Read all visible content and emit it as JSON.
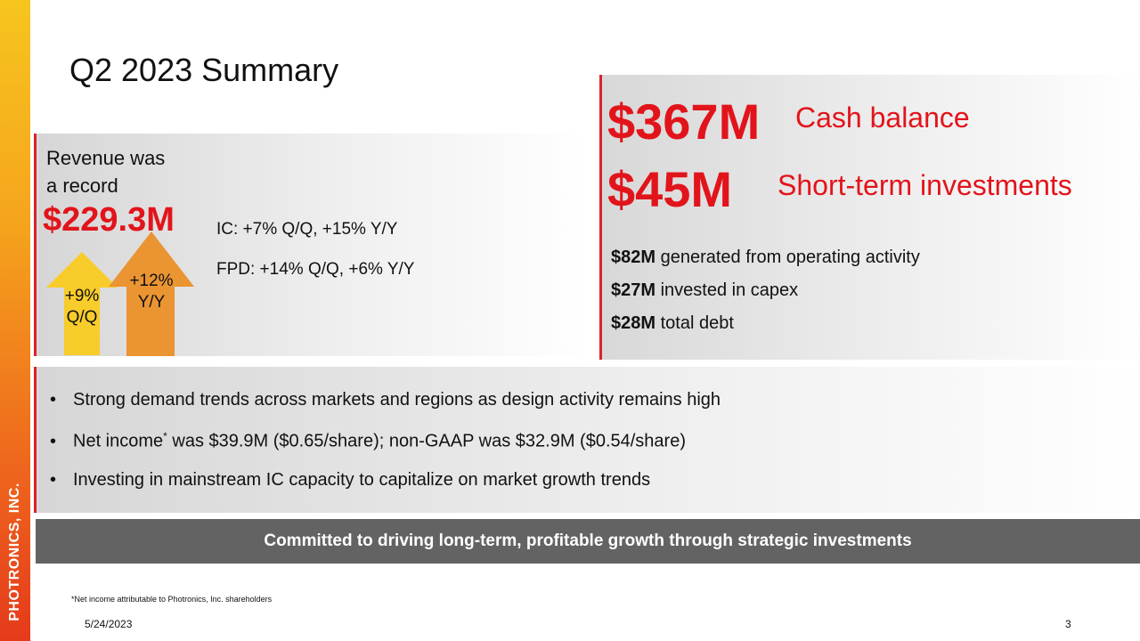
{
  "sidebar": {
    "company": "PHOTRONICS, INC."
  },
  "title": "Q2 2023 Summary",
  "revenue": {
    "heading_line1": "Revenue was",
    "heading_line2": "a record",
    "value": "$229.3M",
    "ic_line": "IC: +7% Q/Q, +15% Y/Y",
    "fpd_line": "FPD: +14% Q/Q, +6% Y/Y",
    "arrow_qq": {
      "line1": "+9%",
      "line2": "Q/Q",
      "color": "#f8cc2a"
    },
    "arrow_yy": {
      "line1": "+12%",
      "line2": "Y/Y",
      "color": "#ea9432"
    }
  },
  "cash": {
    "balance_value": "$367M",
    "balance_label": "Cash balance",
    "investments_value": "$45M",
    "investments_label": "Short-term investments",
    "lines": [
      {
        "value": "$82M",
        "text": " generated from operating activity"
      },
      {
        "value": "$27M",
        "text": " invested in capex"
      },
      {
        "value": "$28M",
        "text": " total debt"
      }
    ]
  },
  "bullets": {
    "marker": "•",
    "item1": "Strong demand trends across markets and regions as design activity remains high",
    "item2_before": "Net income",
    "item2_sup": "*",
    "item2_after": " was $39.9M ($0.65/share); non-GAAP was $32.9M ($0.54/share)",
    "item3": "Investing in mainstream IC capacity to capitalize on market growth trends"
  },
  "banner": "Committed to driving long-term, profitable growth through strategic investments",
  "footnote": "*Net income attributable to Photronics, Inc. shareholders",
  "date": "5/24/2023",
  "page_number": "3",
  "colors": {
    "accent_red": "#e2141b",
    "banner_gray": "#636363"
  }
}
